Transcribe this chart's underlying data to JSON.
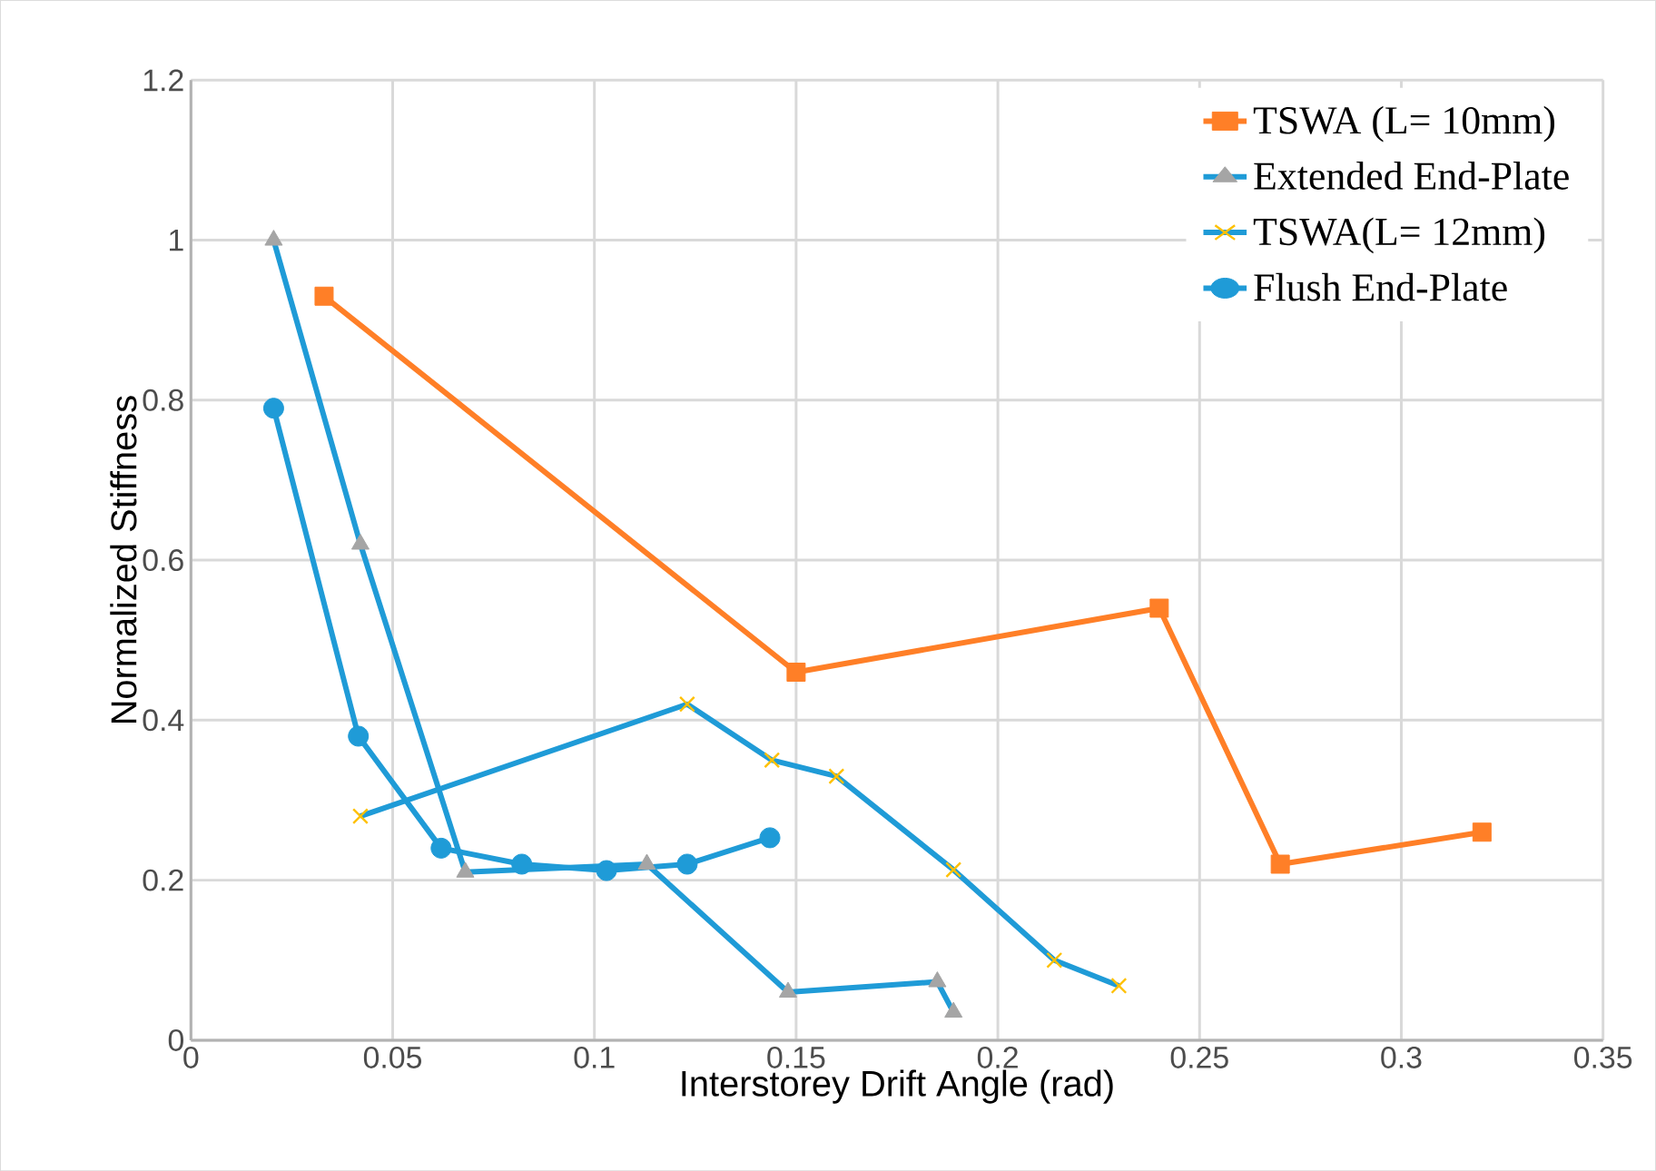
{
  "chart_data": {
    "type": "line",
    "xlabel": "Interstorey Drift Angle (rad)",
    "ylabel": "Normalized Stiffness",
    "xlim": [
      0,
      0.35
    ],
    "xticks": [
      0,
      0.05,
      0.1,
      0.15,
      0.2,
      0.25,
      0.3,
      0.35
    ],
    "ylim": [
      0,
      1.2
    ],
    "yticks": [
      0,
      0.2,
      0.4,
      0.6,
      0.8,
      1,
      1.2
    ],
    "grid": true,
    "legend": "top right",
    "line_style": "solid",
    "series": [
      {
        "name": "TSWA (L= 10mm)",
        "color": "#ff7f27",
        "marker": "square",
        "colors": [
          "#ff7f27",
          "#ff7f27",
          "#ff7f27",
          "#ff7f27",
          "#ff7f27"
        ],
        "x": [
          0.033,
          0.15,
          0.24,
          0.27,
          0.32
        ],
        "values": [
          0.93,
          0.46,
          0.54,
          0.22,
          0.26
        ]
      },
      {
        "name": "Extended End-Plate",
        "color": "#1f9bd7",
        "marker": "triangle",
        "colors": [
          "#a5a5a5",
          "#a5a5a5",
          "#a5a5a5",
          "#a5a5a5",
          "#a5a5a5",
          "#a5a5a5",
          "#a5a5a5"
        ],
        "x": [
          0.0205,
          0.042,
          0.068,
          0.113,
          0.148,
          0.185,
          0.189
        ],
        "values": [
          1.0,
          0.62,
          0.21,
          0.22,
          0.06,
          0.073,
          0.035
        ]
      },
      {
        "name": "TSWA(L= 12mm)",
        "color": "#1f9bd7",
        "marker": "cross",
        "colors": [
          "#ffc000",
          "#ffc000",
          "#ffc000",
          "#ffc000",
          "#ffc000",
          "#ffc000",
          "#ffc000"
        ],
        "x": [
          0.042,
          0.123,
          0.144,
          0.16,
          0.189,
          0.214,
          0.23
        ],
        "values": [
          0.28,
          0.42,
          0.35,
          0.33,
          0.213,
          0.1,
          0.068
        ]
      },
      {
        "name": "Flush End-Plate",
        "color": "#1f9bd7",
        "marker": "circle",
        "colors": [
          "#1f9bd7",
          "#1f9bd7",
          "#1f9bd7",
          "#1f9bd7",
          "#1f9bd7",
          "#1f9bd7",
          "#1f9bd7"
        ],
        "x": [
          0.0205,
          0.0415,
          0.062,
          0.082,
          0.103,
          0.123,
          0.1435
        ],
        "values": [
          0.79,
          0.38,
          0.24,
          0.22,
          0.212,
          0.22,
          0.253
        ]
      }
    ]
  }
}
